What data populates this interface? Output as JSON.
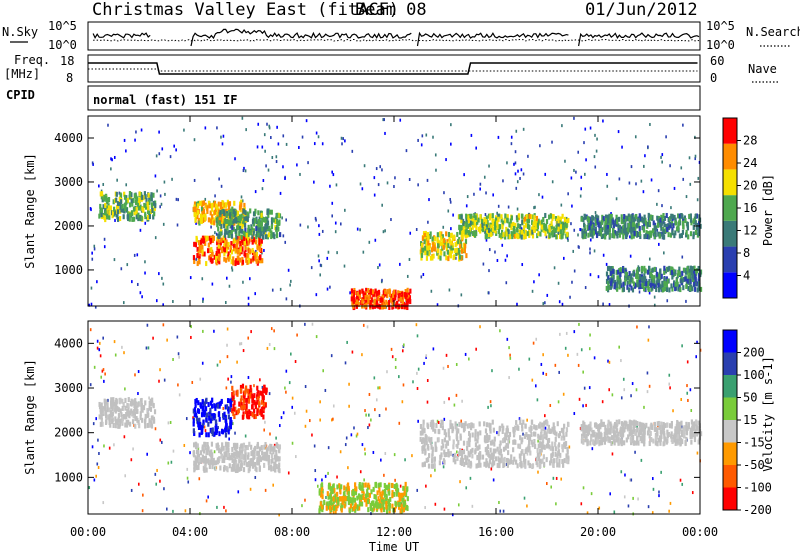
{
  "header": {
    "title": "Christmas Valley East (fitACF)",
    "beam": "Beam 08",
    "date": "01/Jun/2012"
  },
  "strips": {
    "nsky_label": "N.Sky",
    "nsky_ticks": [
      "10^5",
      "10^0"
    ],
    "nsearch_label": "N.Search",
    "nsearch_ticks": [
      "10^5",
      "10^0"
    ],
    "freq_label": "Freq.",
    "freq_unit": "[MHz]",
    "freq_ticks": [
      "18",
      "8"
    ],
    "nave_label": "Nave",
    "nave_ticks": [
      "60",
      "0"
    ],
    "cpid_label": "CPID",
    "cpid_value": "normal (fast) 151 IF"
  },
  "x_axis": {
    "label": "Time UT",
    "ticks": [
      "00:00",
      "04:00",
      "08:00",
      "12:00",
      "16:00",
      "20:00",
      "00:00"
    ]
  },
  "chart_data": [
    {
      "type": "heatmap",
      "panel": "power",
      "ylabel": "Slant Range [km]",
      "ylim": [
        180,
        4500
      ],
      "y_ticks": [
        1000,
        2000,
        3000,
        4000
      ],
      "xlim_hours": [
        0,
        24
      ],
      "colorbar": {
        "label": "Power [dB]",
        "ticks": [
          4,
          8,
          12,
          16,
          20,
          24,
          28
        ],
        "range": [
          0,
          32
        ],
        "colors": [
          "#0000ff",
          "#2a3fb0",
          "#3a7a78",
          "#4ea84e",
          "#f5e000",
          "#ff8c00",
          "#ff0000"
        ]
      },
      "echo_regions": [
        {
          "t": [
            0.4,
            2.6
          ],
          "r": [
            2200,
            2800
          ],
          "level_db": 16
        },
        {
          "t": [
            4.1,
            6.8
          ],
          "r": [
            1200,
            1800
          ],
          "level_db": 26
        },
        {
          "t": [
            4.1,
            6.2
          ],
          "r": [
            2100,
            2600
          ],
          "level_db": 22
        },
        {
          "t": [
            5.0,
            7.5
          ],
          "r": [
            1800,
            2400
          ],
          "level_db": 14
        },
        {
          "t": [
            10.3,
            12.6
          ],
          "r": [
            200,
            600
          ],
          "level_db": 28
        },
        {
          "t": [
            13.0,
            14.8
          ],
          "r": [
            1300,
            1900
          ],
          "level_db": 20
        },
        {
          "t": [
            14.5,
            18.8
          ],
          "r": [
            1800,
            2300
          ],
          "level_db": 18
        },
        {
          "t": [
            19.3,
            24
          ],
          "r": [
            1800,
            2300
          ],
          "level_db": 12
        },
        {
          "t": [
            20.3,
            24
          ],
          "r": [
            600,
            1100
          ],
          "level_db": 12
        }
      ]
    },
    {
      "type": "heatmap",
      "panel": "velocity",
      "ylabel": "Slant Range [km]",
      "ylim": [
        180,
        4500
      ],
      "y_ticks": [
        1000,
        2000,
        3000,
        4000
      ],
      "xlim_hours": [
        0,
        24
      ],
      "colorbar": {
        "label": "Velocity [m s-1]",
        "ticks": [
          200,
          100,
          50,
          15,
          -15,
          -50,
          -100,
          -200
        ],
        "colors": [
          "#0000ff",
          "#2a3fb0",
          "#3aa070",
          "#7acc3a",
          "#c8c8c8",
          "#ff9a00",
          "#ff5a00",
          "#ff0000"
        ],
        "ground_scatter_color": "#c0c0c0"
      },
      "echo_regions": [
        {
          "t": [
            0.4,
            2.6
          ],
          "r": [
            2200,
            2800
          ],
          "velocity": 0
        },
        {
          "t": [
            4.1,
            5.6
          ],
          "r": [
            2000,
            2800
          ],
          "velocity": 200
        },
        {
          "t": [
            5.6,
            7.0
          ],
          "r": [
            2400,
            3100
          ],
          "velocity": -150
        },
        {
          "t": [
            4.1,
            7.5
          ],
          "r": [
            1200,
            1800
          ],
          "velocity": 0
        },
        {
          "t": [
            13.0,
            18.8
          ],
          "r": [
            1300,
            2300
          ],
          "velocity": 0
        },
        {
          "t": [
            19.3,
            24
          ],
          "r": [
            1800,
            2300
          ],
          "velocity": 0
        },
        {
          "t": [
            9.0,
            12.5
          ],
          "r": [
            300,
            900
          ],
          "velocity": 40
        }
      ]
    }
  ],
  "colors": {
    "axis": "#000000",
    "ground_scatter": "#c0c0c0"
  }
}
